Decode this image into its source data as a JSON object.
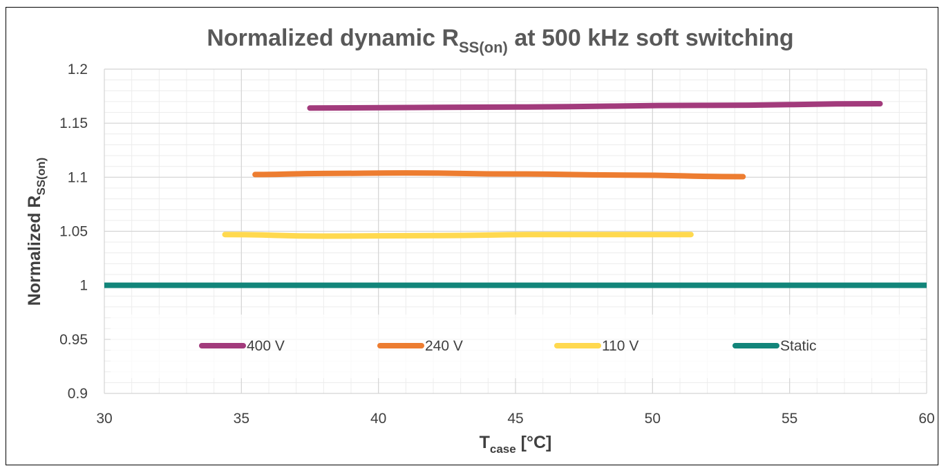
{
  "chart_data": {
    "type": "line",
    "title": {
      "main": "Normalized dynamic R",
      "sub": "SS(on)",
      "rest": " at 500 kHz soft switching"
    },
    "xlabel": {
      "main": "T",
      "sub": "case",
      "rest": " [°C]"
    },
    "ylabel": {
      "main": "Normalized R",
      "sub": "SS(on)"
    },
    "xlim": [
      30,
      60
    ],
    "ylim": [
      0.9,
      1.2
    ],
    "x_ticks": [
      30,
      35,
      40,
      45,
      50,
      55,
      60
    ],
    "y_ticks": [
      0.9,
      0.95,
      1,
      1.05,
      1.1,
      1.15,
      1.2
    ],
    "x_tick_labels": [
      "30",
      "35",
      "40",
      "45",
      "50",
      "55",
      "60"
    ],
    "y_tick_labels": [
      "0.9",
      "0.95",
      "1",
      "1.05",
      "1.1",
      "1.15",
      "1.2"
    ],
    "grid": true,
    "legend_position": "bottom-inside",
    "series": [
      {
        "name": "400 V",
        "color": "#a23b7c",
        "x": [
          37.5,
          45,
          52,
          58.3
        ],
        "y": [
          1.164,
          1.165,
          1.1665,
          1.168
        ]
      },
      {
        "name": "240 V",
        "color": "#ed7d31",
        "x": [
          35.5,
          38,
          41,
          45,
          49,
          53.3
        ],
        "y": [
          1.1025,
          1.1035,
          1.104,
          1.103,
          1.102,
          1.1005
        ]
      },
      {
        "name": "110 V",
        "color": "#ffd94f",
        "x": [
          34.4,
          38,
          42,
          46,
          51.4
        ],
        "y": [
          1.047,
          1.0455,
          1.046,
          1.047,
          1.047
        ]
      },
      {
        "name": "Static",
        "color": "#12857a",
        "x": [
          30,
          60
        ],
        "y": [
          1.0,
          1.0
        ]
      }
    ]
  }
}
